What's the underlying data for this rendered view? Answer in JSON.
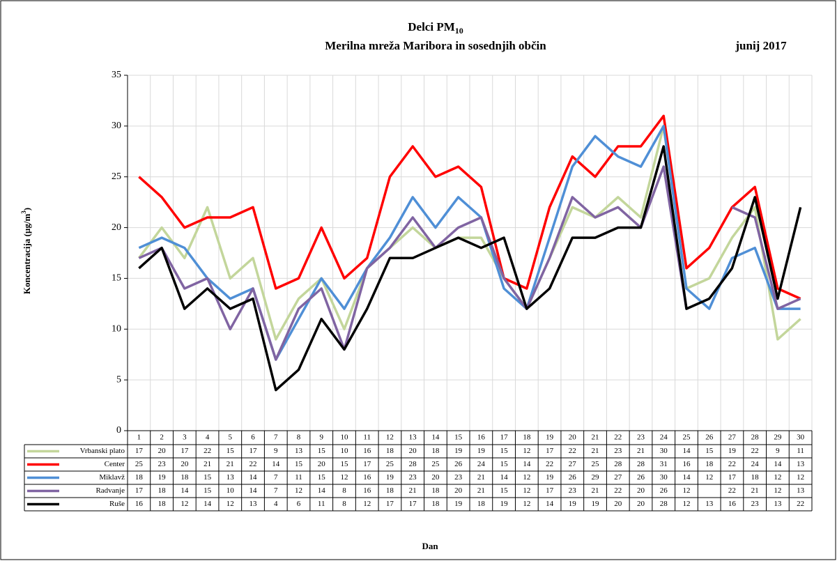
{
  "chart_data": {
    "type": "line",
    "title": "Delci PM",
    "title_sub": "10",
    "subtitle": "Merilna mreža Maribora in sosednjih občin",
    "period": "junij 2017",
    "y_label": "Koncentracija  (µg/m",
    "y_label_sup": "3",
    "y_label_end": ")",
    "x_label": "Dan",
    "categories": [
      "1",
      "2",
      "3",
      "4",
      "5",
      "6",
      "7",
      "8",
      "9",
      "10",
      "11",
      "12",
      "13",
      "14",
      "15",
      "16",
      "17",
      "18",
      "19",
      "20",
      "21",
      "22",
      "23",
      "24",
      "25",
      "26",
      "27",
      "28",
      "29",
      "30"
    ],
    "ylim": [
      0,
      35
    ],
    "yticks": [
      0,
      5,
      10,
      15,
      20,
      25,
      30,
      35
    ],
    "grid": true,
    "series": [
      {
        "name": "Vrbanski plato",
        "color": "#c3d69b",
        "values": [
          17,
          20,
          17,
          22,
          15,
          17,
          9,
          13,
          15,
          10,
          16,
          18,
          20,
          18,
          19,
          19,
          15,
          12,
          17,
          22,
          21,
          23,
          21,
          30,
          14,
          15,
          19,
          22,
          9,
          11
        ]
      },
      {
        "name": "Center",
        "color": "#ff0000",
        "values": [
          25,
          23,
          20,
          21,
          21,
          22,
          14,
          15,
          20,
          15,
          17,
          25,
          28,
          25,
          26,
          24,
          15,
          14,
          22,
          27,
          25,
          28,
          28,
          31,
          16,
          18,
          22,
          24,
          14,
          13
        ]
      },
      {
        "name": "Miklavž",
        "color": "#4f8fd6",
        "values": [
          18,
          19,
          18,
          15,
          13,
          14,
          7,
          11,
          15,
          12,
          16,
          19,
          23,
          20,
          23,
          21,
          14,
          12,
          19,
          26,
          29,
          27,
          26,
          30,
          14,
          12,
          17,
          18,
          12,
          12
        ]
      },
      {
        "name": "Radvanje",
        "color": "#8064a2",
        "values": [
          17,
          18,
          14,
          15,
          10,
          14,
          7,
          12,
          14,
          8,
          16,
          18,
          21,
          18,
          20,
          21,
          15,
          12,
          17,
          23,
          21,
          22,
          20,
          26,
          12,
          null,
          22,
          21,
          12,
          13
        ]
      },
      {
        "name": "Ruše",
        "color": "#000000",
        "values": [
          16,
          18,
          12,
          14,
          12,
          13,
          4,
          6,
          11,
          8,
          12,
          17,
          17,
          18,
          19,
          18,
          19,
          12,
          14,
          19,
          19,
          20,
          20,
          28,
          12,
          13,
          16,
          23,
          13,
          22
        ]
      }
    ]
  }
}
